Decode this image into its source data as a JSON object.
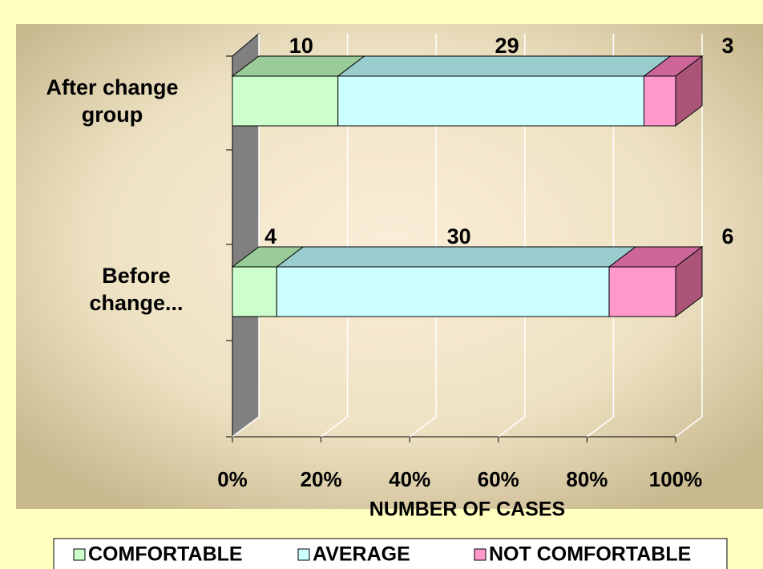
{
  "chart_data": {
    "type": "bar",
    "orientation": "horizontal",
    "stacked": "percent",
    "categories": [
      "After change group",
      "Before change..."
    ],
    "series": [
      {
        "name": "COMFORTABLE",
        "color": "#ccffcc",
        "values": [
          10,
          4
        ]
      },
      {
        "name": "AVERAGE",
        "color": "#ccffff",
        "values": [
          29,
          30
        ]
      },
      {
        "name": "NOT COMFORTABLE",
        "color": "#ff99cc",
        "values": [
          3,
          6
        ]
      }
    ],
    "x_label": "NUMBER OF CASES",
    "xlim": [
      0,
      100
    ],
    "xticks": [
      {
        "value": 0,
        "label": "0%"
      },
      {
        "value": 20,
        "label": "20%"
      },
      {
        "value": 40,
        "label": "40%"
      },
      {
        "value": 60,
        "label": "60%"
      },
      {
        "value": 80,
        "label": "80%"
      },
      {
        "value": 100,
        "label": "100%"
      }
    ],
    "grid": true,
    "legend": "bottom"
  }
}
